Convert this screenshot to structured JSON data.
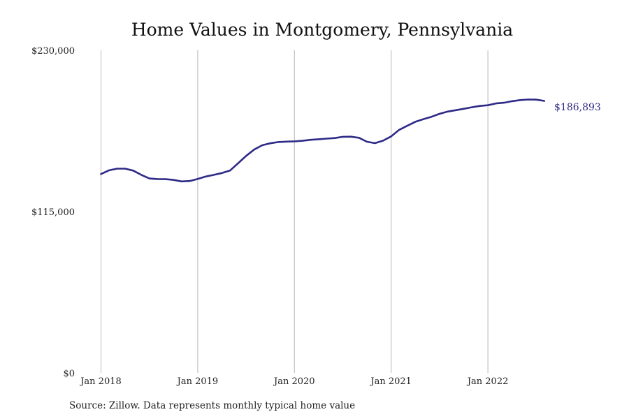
{
  "chart_data": {
    "type": "line",
    "title": "Home Values in Montgomery, Pennsylvania",
    "source": "Source: Zillow. Data represents monthly typical home value",
    "xlabel": "",
    "ylabel": "",
    "ylim": [
      0,
      230000
    ],
    "y_ticks": [
      {
        "value": 0,
        "label": "$0"
      },
      {
        "value": 115000,
        "label": "$115,000"
      },
      {
        "value": 230000,
        "label": "$230,000"
      }
    ],
    "x_ticks": [
      {
        "value": "2018-01",
        "label": "Jan 2018"
      },
      {
        "value": "2019-01",
        "label": "Jan 2019"
      },
      {
        "value": "2020-01",
        "label": "Jan 2020"
      },
      {
        "value": "2021-01",
        "label": "Jan 2021"
      },
      {
        "value": "2022-01",
        "label": "Jan 2022"
      }
    ],
    "x_range": [
      "2018-01",
      "2022-08"
    ],
    "grid": {
      "vertical": true,
      "horizontal": false
    },
    "end_label": "$186,893",
    "color": "#2e2a86",
    "series": [
      {
        "x": [
          "2018-01",
          "2018-02",
          "2018-03",
          "2018-04",
          "2018-05",
          "2018-06",
          "2018-07",
          "2018-08",
          "2018-09",
          "2018-10",
          "2018-11",
          "2018-12",
          "2019-01",
          "2019-02",
          "2019-03",
          "2019-04",
          "2019-05",
          "2019-06",
          "2019-07",
          "2019-08",
          "2019-09",
          "2019-10",
          "2019-11",
          "2019-12",
          "2020-01",
          "2020-02",
          "2020-03",
          "2020-04",
          "2020-05",
          "2020-06",
          "2020-07",
          "2020-08",
          "2020-09",
          "2020-10",
          "2020-11",
          "2020-12",
          "2021-01",
          "2021-02",
          "2021-03",
          "2021-04",
          "2021-05",
          "2021-06",
          "2021-07",
          "2021-08",
          "2021-09",
          "2021-10",
          "2021-11",
          "2021-12",
          "2022-01",
          "2022-02",
          "2022-03",
          "2022-04",
          "2022-05",
          "2022-06",
          "2022-07",
          "2022-08"
        ],
        "values": [
          141800,
          144400,
          145600,
          145600,
          144200,
          141200,
          138600,
          138200,
          138100,
          137600,
          136500,
          136800,
          138300,
          140000,
          141200,
          142500,
          144200,
          149400,
          154700,
          159200,
          162300,
          163700,
          164600,
          164900,
          165100,
          165500,
          166200,
          166600,
          167000,
          167400,
          168300,
          168400,
          167600,
          164800,
          163800,
          165600,
          168600,
          173300,
          176200,
          179000,
          180900,
          182600,
          184700,
          186300,
          187300,
          188300,
          189400,
          190300,
          190800,
          192100,
          192600,
          193700,
          194500,
          194900,
          194800,
          186893
        ]
      }
    ]
  }
}
